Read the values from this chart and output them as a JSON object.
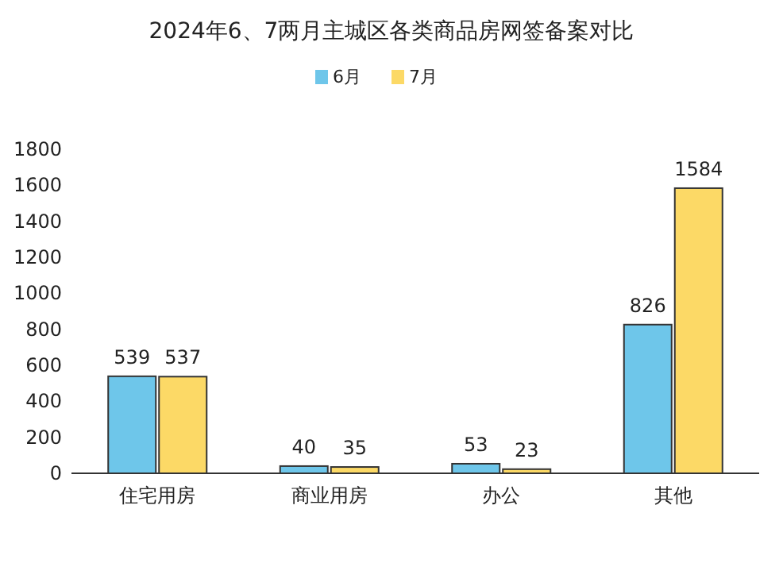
{
  "chart_data": {
    "type": "bar",
    "title": "2024年6、7两月主城区各类商品房网签备案对比",
    "categories": [
      "住宅用房",
      "商业用房",
      "办公",
      "其他"
    ],
    "series": [
      {
        "name": "6月",
        "color": "#6ec6ea",
        "values": [
          539,
          40,
          53,
          826
        ]
      },
      {
        "name": "7月",
        "color": "#fcd966",
        "values": [
          537,
          35,
          23,
          1584
        ]
      }
    ],
    "ylim": [
      0,
      1800
    ],
    "yticks": [
      0,
      200,
      400,
      600,
      800,
      1000,
      1200,
      1400,
      1600,
      1800
    ],
    "data_labels": true,
    "legend": "top",
    "grid": false
  }
}
